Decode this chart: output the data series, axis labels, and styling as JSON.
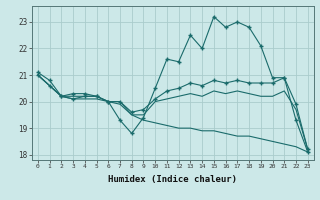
{
  "title": "",
  "xlabel": "Humidex (Indice chaleur)",
  "ylabel": "",
  "background_color": "#cce8e8",
  "grid_color": "#aacccc",
  "line_color": "#1a6b6b",
  "xlim": [
    -0.5,
    23.5
  ],
  "ylim": [
    17.8,
    23.6
  ],
  "yticks": [
    18,
    19,
    20,
    21,
    22,
    23
  ],
  "xticks": [
    0,
    1,
    2,
    3,
    4,
    5,
    6,
    7,
    8,
    9,
    10,
    11,
    12,
    13,
    14,
    15,
    16,
    17,
    18,
    19,
    20,
    21,
    22,
    23
  ],
  "series": [
    {
      "x": [
        0,
        1,
        2,
        3,
        4,
        5,
        6,
        7,
        8,
        9,
        10,
        11,
        12,
        13,
        14,
        15,
        16,
        17,
        18,
        19,
        20,
        21,
        22,
        23
      ],
      "y": [
        21.1,
        20.8,
        20.2,
        20.3,
        20.3,
        20.2,
        20.0,
        19.3,
        18.8,
        19.4,
        20.5,
        21.6,
        21.5,
        22.5,
        22.0,
        23.2,
        22.8,
        23.0,
        22.8,
        22.1,
        20.9,
        20.9,
        19.3,
        18.1
      ],
      "marker": "+"
    },
    {
      "x": [
        0,
        1,
        2,
        3,
        4,
        5,
        6,
        7,
        8,
        9,
        10,
        11,
        12,
        13,
        14,
        15,
        16,
        17,
        18,
        19,
        20,
        21,
        22,
        23
      ],
      "y": [
        21.0,
        20.6,
        20.2,
        20.1,
        20.2,
        20.2,
        20.0,
        20.0,
        19.6,
        19.7,
        20.1,
        20.4,
        20.5,
        20.7,
        20.6,
        20.8,
        20.7,
        20.8,
        20.7,
        20.7,
        20.7,
        20.9,
        19.9,
        18.2
      ],
      "marker": "+"
    },
    {
      "x": [
        0,
        1,
        2,
        3,
        4,
        5,
        6,
        7,
        8,
        9,
        10,
        11,
        12,
        13,
        14,
        15,
        16,
        17,
        18,
        19,
        20,
        21,
        22,
        23
      ],
      "y": [
        21.0,
        20.6,
        20.2,
        20.2,
        20.2,
        20.2,
        20.0,
        20.0,
        19.5,
        19.5,
        20.0,
        20.1,
        20.2,
        20.3,
        20.2,
        20.4,
        20.3,
        20.4,
        20.3,
        20.2,
        20.2,
        20.4,
        19.7,
        18.2
      ],
      "marker": null
    },
    {
      "x": [
        0,
        1,
        2,
        3,
        4,
        5,
        6,
        7,
        8,
        9,
        10,
        11,
        12,
        13,
        14,
        15,
        16,
        17,
        18,
        19,
        20,
        21,
        22,
        23
      ],
      "y": [
        21.0,
        20.6,
        20.2,
        20.1,
        20.1,
        20.1,
        20.0,
        19.9,
        19.5,
        19.3,
        19.2,
        19.1,
        19.0,
        19.0,
        18.9,
        18.9,
        18.8,
        18.7,
        18.7,
        18.6,
        18.5,
        18.4,
        18.3,
        18.1
      ],
      "marker": null
    }
  ]
}
